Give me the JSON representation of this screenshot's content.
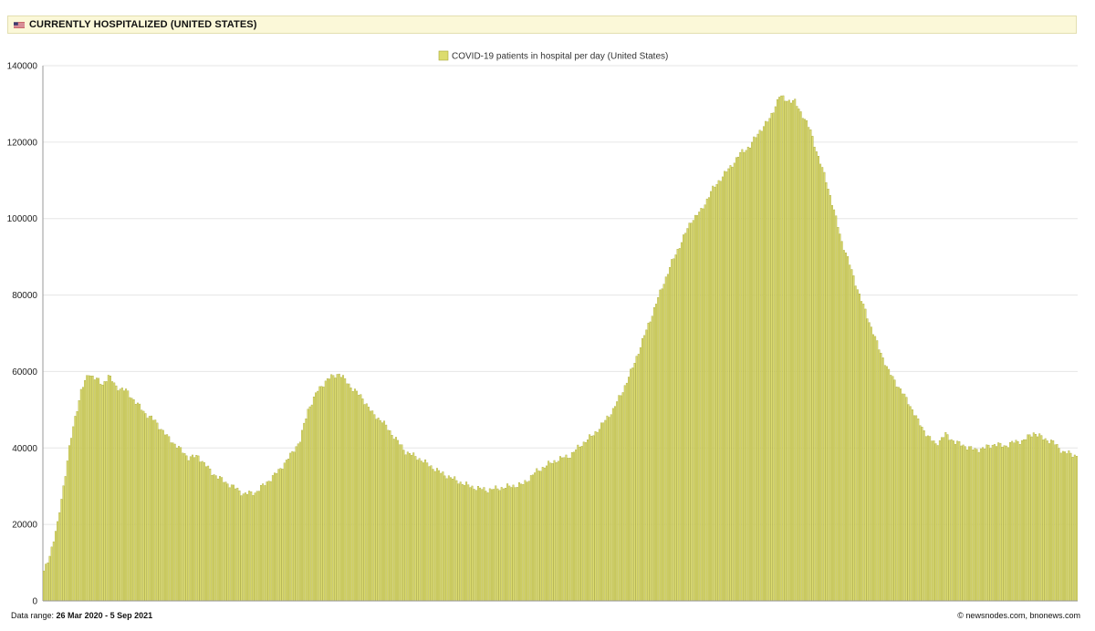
{
  "header": {
    "flag_icon": "us-flag-icon",
    "title": "CURRENTLY HOSPITALIZED (UNITED STATES)"
  },
  "footer": {
    "range_label": "Data range:",
    "range_start": "26 Mar 2020",
    "range_sep": "-",
    "range_end": "5 Sep 2021",
    "credit": "© newsnodes.com, bnonews.com"
  },
  "chart_data": {
    "type": "bar",
    "legend": "COVID-19 patients in hospital per day (United States)",
    "legend_position": "top-center",
    "x_start": "2020-03-26",
    "x_end": "2021-09-05",
    "ylim": [
      0,
      140000
    ],
    "yticks": [
      0,
      20000,
      40000,
      60000,
      80000,
      100000,
      120000,
      140000
    ],
    "ytick_labels": [
      "0",
      "20000",
      "40000",
      "60000",
      "80000",
      "100000",
      "120000",
      "140000"
    ],
    "grid": true,
    "colors": {
      "bar_fill": "#dcdc6e",
      "bar_stroke": "#a8a838",
      "grid": "#e6e6e6",
      "axis": "#999999"
    },
    "keypoints": [
      [
        "2020-03-26",
        7500
      ],
      [
        "2020-03-29",
        12000
      ],
      [
        "2020-04-02",
        20000
      ],
      [
        "2020-04-05",
        30000
      ],
      [
        "2020-04-08",
        40000
      ],
      [
        "2020-04-11",
        48000
      ],
      [
        "2020-04-14",
        55000
      ],
      [
        "2020-04-18",
        59500
      ],
      [
        "2020-04-22",
        58000
      ],
      [
        "2020-04-25",
        56500
      ],
      [
        "2020-04-28",
        59000
      ],
      [
        "2020-05-02",
        56000
      ],
      [
        "2020-05-07",
        55000
      ],
      [
        "2020-05-12",
        52000
      ],
      [
        "2020-05-17",
        49000
      ],
      [
        "2020-05-22",
        47000
      ],
      [
        "2020-05-28",
        43000
      ],
      [
        "2020-06-03",
        40000
      ],
      [
        "2020-06-08",
        37500
      ],
      [
        "2020-06-13",
        37800
      ],
      [
        "2020-06-20",
        33500
      ],
      [
        "2020-06-27",
        31000
      ],
      [
        "2020-07-02",
        29500
      ],
      [
        "2020-07-06",
        28000
      ],
      [
        "2020-07-12",
        28300
      ],
      [
        "2020-07-18",
        31000
      ],
      [
        "2020-07-24",
        34000
      ],
      [
        "2020-07-30",
        38000
      ],
      [
        "2020-08-04",
        42000
      ],
      [
        "2020-08-08",
        50000
      ],
      [
        "2020-08-13",
        55000
      ],
      [
        "2020-08-18",
        58000
      ],
      [
        "2020-08-24",
        59500
      ],
      [
        "2020-08-30",
        56000
      ],
      [
        "2020-09-05",
        53000
      ],
      [
        "2020-09-10",
        49000
      ],
      [
        "2020-09-15",
        47000
      ],
      [
        "2020-09-21",
        43000
      ],
      [
        "2020-09-27",
        39000
      ],
      [
        "2020-10-03",
        37500
      ],
      [
        "2020-10-09",
        35500
      ],
      [
        "2020-10-15",
        33500
      ],
      [
        "2020-10-21",
        32000
      ],
      [
        "2020-10-27",
        30500
      ],
      [
        "2020-11-02",
        29500
      ],
      [
        "2020-11-08",
        29000
      ],
      [
        "2020-11-14",
        29500
      ],
      [
        "2020-11-20",
        30000
      ],
      [
        "2020-11-26",
        30500
      ],
      [
        "2020-12-02",
        33500
      ],
      [
        "2020-12-08",
        35500
      ],
      [
        "2020-12-14",
        37000
      ],
      [
        "2020-12-20",
        38000
      ],
      [
        "2020-12-26",
        41000
      ],
      [
        "2021-01-01",
        43500
      ],
      [
        "2021-01-06",
        46500
      ],
      [
        "2021-01-11",
        50000
      ],
      [
        "2021-01-16",
        55000
      ],
      [
        "2021-01-21",
        61000
      ],
      [
        "2021-01-26",
        68000
      ],
      [
        "2021-01-31",
        75000
      ],
      [
        "2021-02-05",
        82000
      ],
      [
        "2021-02-10",
        88500
      ],
      [
        "2021-02-15",
        94000
      ],
      [
        "2021-02-20",
        99500
      ],
      [
        "2021-02-25",
        102000
      ],
      [
        "2021-03-02",
        107000
      ],
      [
        "2021-03-07",
        110500
      ],
      [
        "2021-03-12",
        113500
      ],
      [
        "2021-03-17",
        117000
      ],
      [
        "2021-03-22",
        119000
      ],
      [
        "2021-03-27",
        123000
      ],
      [
        "2021-04-01",
        126000
      ],
      [
        "2021-04-06",
        132000
      ],
      [
        "2021-04-10",
        131000
      ],
      [
        "2021-04-14",
        130500
      ],
      [
        "2021-04-18",
        127000
      ],
      [
        "2021-04-22",
        123000
      ],
      [
        "2021-04-26",
        116000
      ],
      [
        "2021-04-30",
        110000
      ],
      [
        "2021-05-04",
        102000
      ],
      [
        "2021-05-08",
        94000
      ],
      [
        "2021-05-12",
        88000
      ],
      [
        "2021-05-17",
        80000
      ],
      [
        "2021-05-22",
        73000
      ],
      [
        "2021-05-27",
        66000
      ],
      [
        "2021-06-01",
        60000
      ],
      [
        "2021-06-06",
        56000
      ],
      [
        "2021-06-11",
        52000
      ],
      [
        "2021-06-16",
        47000
      ],
      [
        "2021-06-21",
        43000
      ],
      [
        "2021-06-25",
        41000
      ],
      [
        "2021-06-30",
        43500
      ],
      [
        "2021-07-05",
        41500
      ],
      [
        "2021-07-10",
        40500
      ],
      [
        "2021-07-15",
        39500
      ],
      [
        "2021-07-20",
        40000
      ],
      [
        "2021-07-25",
        41000
      ],
      [
        "2021-07-30",
        40500
      ],
      [
        "2021-08-04",
        41500
      ],
      [
        "2021-08-09",
        42000
      ],
      [
        "2021-08-14",
        44000
      ],
      [
        "2021-08-19",
        42500
      ],
      [
        "2021-08-24",
        41500
      ],
      [
        "2021-08-29",
        39000
      ],
      [
        "2021-09-05",
        38000
      ]
    ]
  }
}
